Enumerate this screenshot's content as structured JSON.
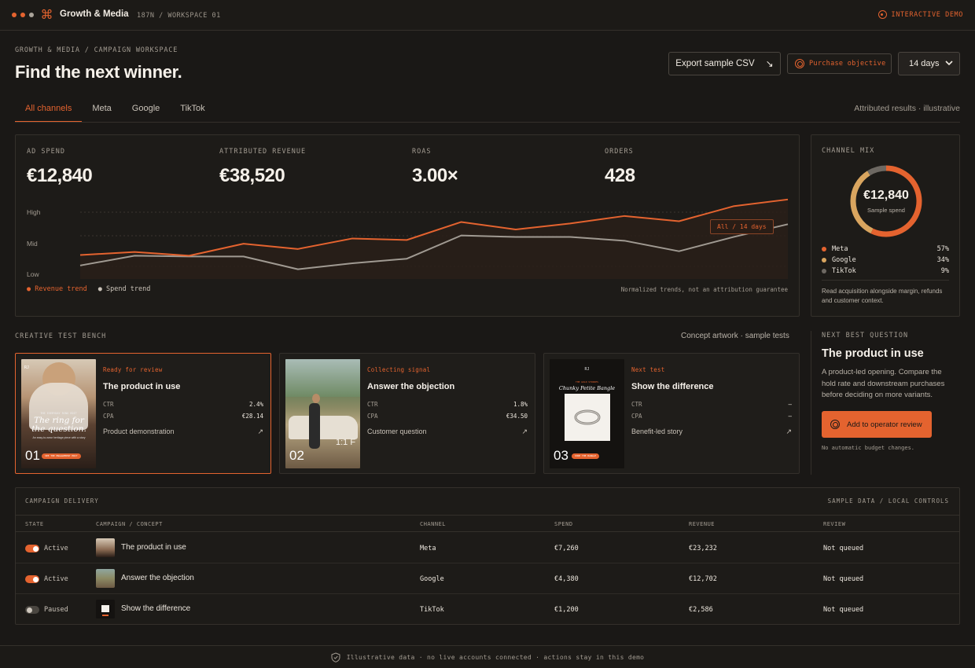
{
  "app": {
    "title": "Growth & Media",
    "workspace": "187N / WORKSPACE 01",
    "demo_label": "INTERACTIVE DEMO"
  },
  "header": {
    "breadcrumb": "GROWTH & MEDIA / CAMPAIGN WORKSPACE",
    "title": "Find the next winner.",
    "export_label": "Export sample CSV",
    "objective_label": "Purchase objective",
    "range_value": "14 days"
  },
  "tabs": [
    {
      "label": "All channels"
    },
    {
      "label": "Meta"
    },
    {
      "label": "Google"
    },
    {
      "label": "TikTok"
    }
  ],
  "attribution_note": "Attributed results · illustrative",
  "metrics": [
    {
      "label": "AD SPEND",
      "value": "€12,840"
    },
    {
      "label": "ATTRIBUTED REVENUE",
      "value": "€38,520"
    },
    {
      "label": "ROAS",
      "value": "3.00×"
    },
    {
      "label": "ORDERS",
      "value": "428"
    }
  ],
  "chart_data": {
    "type": "line",
    "x": [
      1,
      2,
      3,
      4,
      5,
      6,
      7,
      8,
      9,
      10,
      11,
      12,
      13,
      14
    ],
    "series": [
      {
        "name": "Revenue trend",
        "color": "#e4632f",
        "values": [
          0.32,
          0.36,
          0.31,
          0.47,
          0.4,
          0.54,
          0.52,
          0.76,
          0.66,
          0.74,
          0.84,
          0.77,
          0.97,
          1.06
        ]
      },
      {
        "name": "Spend trend",
        "color": "#a09a92",
        "values": [
          0.18,
          0.31,
          0.3,
          0.3,
          0.13,
          0.21,
          0.27,
          0.58,
          0.56,
          0.56,
          0.51,
          0.37,
          0.56,
          0.73
        ]
      }
    ],
    "ytick_labels": [
      "High",
      "Mid",
      "Low"
    ],
    "ylim": [
      0,
      1.1
    ],
    "annotation": "All / 14 days",
    "legend": [
      "Revenue trend",
      "Spend trend"
    ],
    "note": "Normalized trends, not an attribution guarantee"
  },
  "channel_mix": {
    "title": "CHANNEL MIX",
    "total": "€12,840",
    "total_label": "Sample spend",
    "items": [
      {
        "name": "Meta",
        "pct": "57%",
        "value": 57,
        "color": "#e4632f"
      },
      {
        "name": "Google",
        "pct": "34%",
        "value": 34,
        "color": "#d9a55f"
      },
      {
        "name": "TikTok",
        "pct": "9%",
        "value": 9,
        "color": "#6d6862"
      }
    ],
    "note": "Read acquisition alongside margin, refunds and customer context."
  },
  "creative": {
    "title": "CREATIVE TEST BENCH",
    "note": "Concept artwork · sample tests",
    "cards": [
      {
        "num": "01",
        "status": "Ready for review",
        "title": "The product in use",
        "ctr_label": "CTR",
        "ctr": "2.4%",
        "cpa_label": "CPA",
        "cpa": "€28.14",
        "type": "Product demonstration",
        "art": {
          "brand": "RJ",
          "eyebrow": "THE EVERYDAY RING EDIT",
          "headline": "The ring for the question.",
          "body": "An easy-to-wear heritage piece with a story",
          "cta": "SEE THE ENGAGEMENT EDIT"
        }
      },
      {
        "num": "02",
        "status": "Collecting signal",
        "title": "Answer the objection",
        "ctr_label": "CTR",
        "ctr": "1.8%",
        "cpa_label": "CPA",
        "cpa": "€34.50",
        "type": "Customer question",
        "art": {
          "caption": "1:1 F"
        }
      },
      {
        "num": "03",
        "status": "Next test",
        "title": "Show the difference",
        "ctr_label": "CTR",
        "ctr": "—",
        "cpa_label": "CPA",
        "cpa": "—",
        "type": "Benefit-led story",
        "art": {
          "brand": "RJ",
          "eyebrow": "THE GOLD STORIES",
          "headline": "Chunky Petite Bangle",
          "cta": "SHOP THE BANGLE"
        }
      }
    ]
  },
  "question": {
    "label": "NEXT BEST QUESTION",
    "title": "The product in use",
    "text": "A product-led opening. Compare the hold rate and downstream purchases before deciding on more variants.",
    "button": "Add to operator review",
    "note": "No automatic budget changes."
  },
  "delivery": {
    "title": "CAMPAIGN DELIVERY",
    "meta": "SAMPLE DATA / LOCAL CONTROLS",
    "columns": [
      "STATE",
      "CAMPAIGN / CONCEPT",
      "CHANNEL",
      "SPEND",
      "REVENUE",
      "REVIEW"
    ],
    "rows": [
      {
        "state": "Active",
        "on": true,
        "campaign": "The product in use",
        "channel": "Meta",
        "spend": "€7,260",
        "revenue": "€23,232",
        "review": "Not queued"
      },
      {
        "state": "Active",
        "on": true,
        "campaign": "Answer the objection",
        "channel": "Google",
        "spend": "€4,380",
        "revenue": "€12,702",
        "review": "Not queued"
      },
      {
        "state": "Paused",
        "on": false,
        "campaign": "Show the difference",
        "channel": "TikTok",
        "spend": "€1,200",
        "revenue": "€2,586",
        "review": "Not queued"
      }
    ]
  },
  "footer": "Illustrative data · no live accounts connected · actions stay in this demo"
}
